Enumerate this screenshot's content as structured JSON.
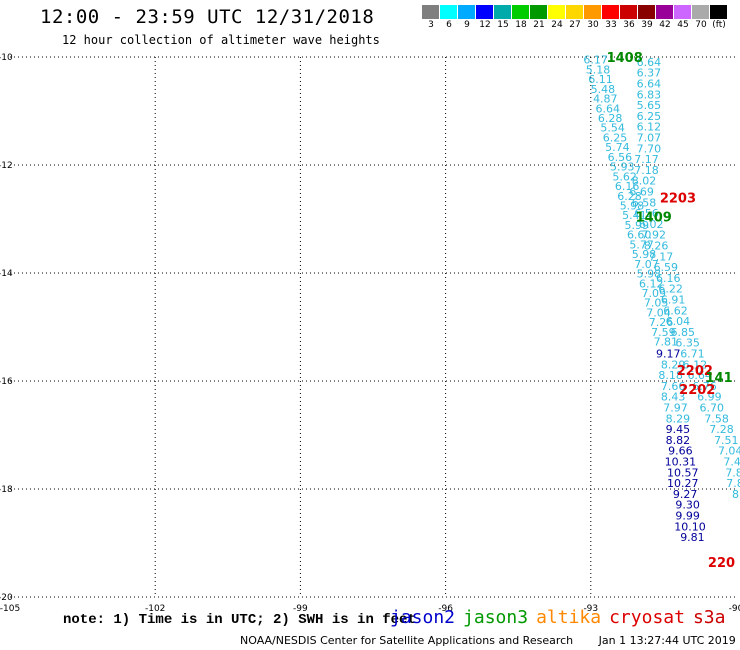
{
  "title": "12:00 - 23:59 UTC 12/31/2018",
  "subtitle": "12 hour collection of altimeter wave heights",
  "colorbar": {
    "colors": [
      "#7f7f7f",
      "#00ffff",
      "#00aaff",
      "#0000ff",
      "#00aaaa",
      "#00cc00",
      "#009900",
      "#ffff00",
      "#ffd700",
      "#ff9900",
      "#ff0000",
      "#cc0000",
      "#880000",
      "#990099",
      "#cc66ff",
      "#aaaaaa",
      "#000000"
    ],
    "labels": [
      "3",
      "6",
      "9",
      "12",
      "15",
      "18",
      "21",
      "24",
      "27",
      "30",
      "33",
      "36",
      "39",
      "42",
      "45",
      "70",
      "(ft)"
    ]
  },
  "axes": {
    "lon_labels": [
      "-105",
      "-102",
      "-99",
      "-96",
      "-93",
      "-90"
    ],
    "lat_labels": [
      "-10",
      "-12",
      "-14",
      "-16",
      "-18",
      "-20"
    ]
  },
  "note": "note: 1) Time is in UTC; 2) SWH is in feet",
  "legend": [
    {
      "name": "jason2",
      "color": "#0000cc"
    },
    {
      "name": "jason3",
      "color": "#009900"
    },
    {
      "name": "altika",
      "color": "#ff8800"
    },
    {
      "name": "cryosat",
      "color": "#dd0000"
    },
    {
      "name": "s3a",
      "color": "#cc0000"
    }
  ],
  "credit": {
    "org": "NOAA/NESDIS Center for Satellite Applications and Research",
    "timestamp": "Jan  1 13:27:44 UTC 2019"
  },
  "chart_data": {
    "type": "scatter",
    "xlim": [
      -105,
      -90
    ],
    "ylim": [
      -20,
      -10
    ],
    "grid": true,
    "colors": {
      "light": "#33bbdd",
      "dark": "#000099",
      "green": "#008800",
      "red": "#dd0000"
    },
    "tracks": [
      {
        "name": "track-a",
        "color": "light",
        "points": [
          {
            "x": -92.9,
            "y": -10.05,
            "v": "6.17"
          },
          {
            "x": -92.85,
            "y": -10.23,
            "v": "5.18"
          },
          {
            "x": -92.8,
            "y": -10.41,
            "v": "6.11"
          },
          {
            "x": -92.75,
            "y": -10.59,
            "v": "5.48"
          },
          {
            "x": -92.7,
            "y": -10.77,
            "v": "4.87"
          },
          {
            "x": -92.65,
            "y": -10.95,
            "v": "6.64"
          },
          {
            "x": -92.6,
            "y": -11.13,
            "v": "6.28"
          },
          {
            "x": -92.55,
            "y": -11.31,
            "v": "5.54"
          },
          {
            "x": -92.5,
            "y": -11.49,
            "v": "6.25"
          },
          {
            "x": -92.45,
            "y": -11.67,
            "v": "5.74"
          },
          {
            "x": -92.4,
            "y": -11.85,
            "v": "6.56"
          },
          {
            "x": -92.35,
            "y": -12.03,
            "v": "5.93"
          },
          {
            "x": -92.3,
            "y": -12.21,
            "v": "5.62"
          },
          {
            "x": -92.25,
            "y": -12.39,
            "v": "6.16"
          },
          {
            "x": -92.2,
            "y": -12.57,
            "v": "6.28"
          },
          {
            "x": -92.15,
            "y": -12.75,
            "v": "5.98"
          },
          {
            "x": -92.1,
            "y": -12.93,
            "v": "5.41"
          },
          {
            "x": -92.05,
            "y": -13.11,
            "v": "5.99"
          },
          {
            "x": -92.0,
            "y": -13.29,
            "v": "6.60"
          },
          {
            "x": -91.95,
            "y": -13.47,
            "v": "5.77"
          },
          {
            "x": -91.9,
            "y": -13.65,
            "v": "5.98"
          },
          {
            "x": -91.85,
            "y": -13.83,
            "v": "7.07"
          },
          {
            "x": -91.8,
            "y": -14.01,
            "v": "5.98"
          },
          {
            "x": -91.75,
            "y": -14.19,
            "v": "6.12"
          },
          {
            "x": -91.7,
            "y": -14.37,
            "v": "7.09"
          },
          {
            "x": -91.65,
            "y": -14.55,
            "v": "7.05"
          },
          {
            "x": -91.6,
            "y": -14.73,
            "v": "7.04"
          },
          {
            "x": -91.55,
            "y": -14.91,
            "v": "7.26"
          },
          {
            "x": -91.5,
            "y": -15.09,
            "v": "7.59"
          },
          {
            "x": -91.45,
            "y": -15.27,
            "v": "7.81"
          }
        ]
      },
      {
        "name": "track-b",
        "color": "light",
        "points": [
          {
            "x": -91.8,
            "y": -10.09,
            "v": "6.64"
          },
          {
            "x": -91.8,
            "y": -10.29,
            "v": "6.37"
          },
          {
            "x": -91.8,
            "y": -10.49,
            "v": "6.64"
          },
          {
            "x": -91.8,
            "y": -10.69,
            "v": "6.83"
          },
          {
            "x": -91.8,
            "y": -10.89,
            "v": "5.65"
          },
          {
            "x": -91.8,
            "y": -11.09,
            "v": "6.25"
          },
          {
            "x": -91.8,
            "y": -11.29,
            "v": "6.12"
          },
          {
            "x": -91.8,
            "y": -11.49,
            "v": "7.07"
          },
          {
            "x": -91.8,
            "y": -11.69,
            "v": "7.70"
          },
          {
            "x": -91.85,
            "y": -11.89,
            "v": "7.17"
          },
          {
            "x": -91.85,
            "y": -12.09,
            "v": "7.18"
          },
          {
            "x": -91.9,
            "y": -12.29,
            "v": "8.02"
          },
          {
            "x": -91.95,
            "y": -12.49,
            "v": "6.69"
          },
          {
            "x": -91.9,
            "y": -12.69,
            "v": "6.58"
          },
          {
            "x": -91.85,
            "y": -12.89,
            "v": "6.56"
          },
          {
            "x": -91.75,
            "y": -13.09,
            "v": "6.02"
          },
          {
            "x": -91.7,
            "y": -13.29,
            "v": "7.92"
          },
          {
            "x": -91.65,
            "y": -13.49,
            "v": "8.26"
          },
          {
            "x": -91.55,
            "y": -13.69,
            "v": "7.17"
          },
          {
            "x": -91.45,
            "y": -13.89,
            "v": "6.59"
          },
          {
            "x": -91.4,
            "y": -14.09,
            "v": "6.16"
          },
          {
            "x": -91.35,
            "y": -14.29,
            "v": "6.22"
          },
          {
            "x": -91.3,
            "y": -14.49,
            "v": "6.91"
          },
          {
            "x": -91.25,
            "y": -14.69,
            "v": "6.62"
          },
          {
            "x": -91.2,
            "y": -14.89,
            "v": "6.04"
          },
          {
            "x": -91.1,
            "y": -15.09,
            "v": "6.85"
          },
          {
            "x": -91.0,
            "y": -15.29,
            "v": "6.35"
          },
          {
            "x": -90.9,
            "y": -15.49,
            "v": "6.71"
          }
        ]
      },
      {
        "name": "track-c",
        "color": "light",
        "points": [
          {
            "x": -91.3,
            "y": -15.69,
            "v": "8.29"
          },
          {
            "x": -91.35,
            "y": -15.89,
            "v": "8.18"
          },
          {
            "x": -91.3,
            "y": -16.09,
            "v": "7.66"
          },
          {
            "x": -91.3,
            "y": -16.29,
            "v": "8.43"
          },
          {
            "x": -91.25,
            "y": -16.49,
            "v": "7.97"
          },
          {
            "x": -91.2,
            "y": -16.69,
            "v": "8.29"
          }
        ]
      },
      {
        "name": "track-d",
        "color": "dark",
        "points": [
          {
            "x": -91.4,
            "y": -15.49,
            "v": "9.17"
          },
          {
            "x": -91.2,
            "y": -16.89,
            "v": "9.45"
          },
          {
            "x": -91.2,
            "y": -17.09,
            "v": "8.82"
          },
          {
            "x": -91.15,
            "y": -17.29,
            "v": "9.66"
          },
          {
            "x": -91.15,
            "y": -17.49,
            "v": "10.31"
          },
          {
            "x": -91.1,
            "y": -17.69,
            "v": "10.57"
          },
          {
            "x": -91.1,
            "y": -17.89,
            "v": "10.27"
          },
          {
            "x": -91.05,
            "y": -18.09,
            "v": "9.27"
          },
          {
            "x": -91.0,
            "y": -18.29,
            "v": "9.30"
          },
          {
            "x": -91.0,
            "y": -18.49,
            "v": "9.99"
          },
          {
            "x": -90.95,
            "y": -18.69,
            "v": "10.10"
          },
          {
            "x": -90.9,
            "y": -18.89,
            "v": "9.81"
          }
        ]
      },
      {
        "name": "track-e",
        "color": "light",
        "points": [
          {
            "x": -90.85,
            "y": -15.69,
            "v": "6.12"
          },
          {
            "x": -90.75,
            "y": -15.89,
            "v": "6.64"
          },
          {
            "x": -90.65,
            "y": -16.09,
            "v": "6.76"
          },
          {
            "x": -90.55,
            "y": -16.29,
            "v": "6.99"
          },
          {
            "x": -90.5,
            "y": -16.49,
            "v": "6.70"
          },
          {
            "x": -90.4,
            "y": -16.69,
            "v": "7.58"
          },
          {
            "x": -90.3,
            "y": -16.89,
            "v": "7.28"
          },
          {
            "x": -90.2,
            "y": -17.09,
            "v": "7.51"
          },
          {
            "x": -90.12,
            "y": -17.29,
            "v": "7.04"
          },
          {
            "x": -90.08,
            "y": -17.49,
            "v": "7.4"
          },
          {
            "x": -90.04,
            "y": -17.69,
            "v": "7.8"
          },
          {
            "x": -90.02,
            "y": -17.89,
            "v": "7.8"
          },
          {
            "x": -90.01,
            "y": -18.09,
            "v": "8"
          }
        ]
      }
    ],
    "time_labels": [
      {
        "x": -92.3,
        "y": -10.0,
        "v": "1408",
        "color": "green"
      },
      {
        "x": -91.2,
        "y": -12.6,
        "v": "2203",
        "color": "red"
      },
      {
        "x": -91.7,
        "y": -12.95,
        "v": "1409",
        "color": "green"
      },
      {
        "x": -90.85,
        "y": -15.8,
        "v": "2202",
        "color": "red"
      },
      {
        "x": -90.35,
        "y": -15.93,
        "v": "141",
        "color": "green"
      },
      {
        "x": -90.8,
        "y": -16.15,
        "v": "2202",
        "color": "red"
      },
      {
        "x": -90.3,
        "y": -19.35,
        "v": "220",
        "color": "red"
      }
    ]
  }
}
